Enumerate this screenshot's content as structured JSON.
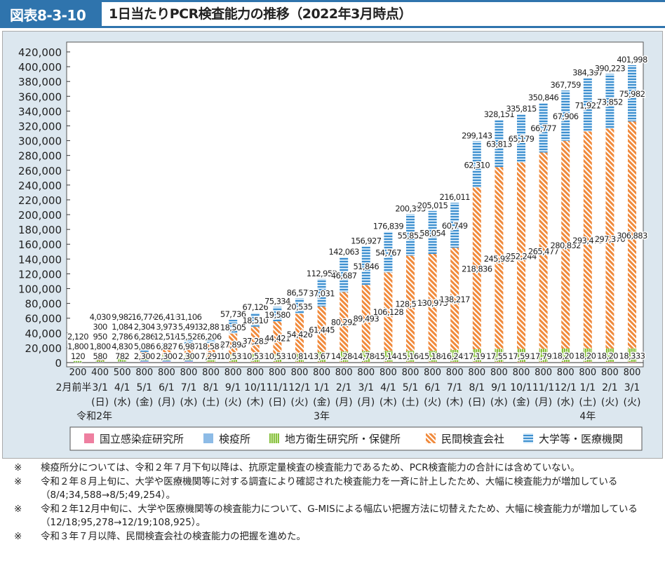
{
  "header": {
    "figure_no": "図表8-3-10",
    "title": "1日当たりPCR検査能力の推移（2022年3月時点）"
  },
  "chart_data": {
    "type": "bar",
    "stacked": true,
    "grid": false,
    "legend_position": "bottom",
    "ylim": [
      0,
      420000
    ],
    "yticks": [
      "0",
      "20,000",
      "40,000",
      "60,000",
      "80,000",
      "100,000",
      "120,000",
      "140,000",
      "160,000",
      "180,000",
      "200,000",
      "220,000",
      "240,000",
      "260,000",
      "280,000",
      "300,000",
      "320,000",
      "340,000",
      "360,000",
      "380,000",
      "400,000",
      "420,000"
    ],
    "categories": [
      "2月前半",
      "3/1",
      "4/1",
      "5/1",
      "6/1",
      "7/1",
      "8/1",
      "9/1",
      "10/1",
      "11/1",
      "12/1",
      "1/1",
      "2/1",
      "3/1",
      "4/1",
      "5/1",
      "6/1",
      "7/1",
      "8/1",
      "9/1",
      "10/1",
      "11/1",
      "12/1",
      "1/1",
      "2/1",
      "3/1"
    ],
    "weekdays": [
      "",
      "(日)",
      "(水)",
      "(金)",
      "(月)",
      "(水)",
      "(土)",
      "(火)",
      "(木)",
      "(日)",
      "(火)",
      "(金)",
      "(月)",
      "(月)",
      "(木)",
      "(土)",
      "(火)",
      "(木)",
      "(日)",
      "(水)",
      "(金)",
      "(月)",
      "(水)",
      "(土)",
      "(火)",
      "(火)"
    ],
    "years": [
      {
        "at": 1,
        "label": "令和2年"
      },
      {
        "at": 11,
        "label": "3年"
      },
      {
        "at": 23,
        "label": "4年"
      }
    ],
    "series": [
      {
        "name": "国立感染症研究所",
        "color": "#ee7fa0",
        "values": [
          200,
          400,
          500,
          800,
          800,
          800,
          800,
          800,
          800,
          800,
          800,
          800,
          800,
          800,
          800,
          800,
          800,
          800,
          800,
          800,
          800,
          800,
          800,
          800,
          800,
          800
        ]
      },
      {
        "name": "検疫所",
        "color": "#8dbbe6",
        "values": [
          120,
          580,
          782,
          2300,
          2300,
          2300,
          null,
          null,
          null,
          null,
          null,
          null,
          null,
          null,
          null,
          null,
          null,
          null,
          null,
          null,
          null,
          null,
          null,
          null,
          null,
          null
        ]
      },
      {
        "name": "地方衛生研究所・保健所",
        "color": "#8cc63f",
        "values": [
          1800,
          1800,
          4830,
          5086,
          6827,
          6987,
          7291,
          10533,
          10533,
          10533,
          10816,
          13677,
          14284,
          14788,
          15144,
          15168,
          15188,
          16245,
          17197,
          17557,
          17592,
          17792,
          18201,
          18201,
          18201,
          18333
        ]
      },
      {
        "name": "民間検査会社",
        "color": "#f08a3c",
        "values": [
          null,
          950,
          2786,
          6286,
          12518,
          15528,
          18584,
          27898,
          37283,
          44421,
          54426,
          61445,
          80292,
          89493,
          106128,
          128575,
          130973,
          138217,
          218836,
          245981,
          252244,
          265477,
          280852,
          293475,
          297370,
          306883
        ]
      },
      {
        "name": "大学等・医療機関",
        "color": "#4a9fd8",
        "values": [
          null,
          300,
          1084,
          2304,
          3973,
          5491,
          6206,
          18505,
          18510,
          19580,
          20535,
          37031,
          46687,
          51846,
          54767,
          55852,
          58054,
          60749,
          62310,
          63813,
          65179,
          66777,
          67906,
          71921,
          73852,
          75982
        ]
      }
    ],
    "totals": [
      2120,
      4030,
      9982,
      16776,
      26418,
      31106,
      32881,
      57736,
      67126,
      75334,
      86577,
      112953,
      142063,
      156927,
      176839,
      200395,
      205015,
      216011,
      299143,
      328151,
      335815,
      350846,
      367759,
      384397,
      390223,
      401998
    ]
  },
  "notes": [
    {
      "mark": "※",
      "text": "検疫所分については、令和２年７月下旬以降は、抗原定量検査の検査能力であるため、PCR検査能力の合計には含めていない。"
    },
    {
      "mark": "※",
      "text": "令和２年８月上旬に、大学や医療機関等に対する調査により確認された検査能力を一斉に計上したため、大幅に検査能力が増加している（8/4;34,588→8/5;49,254）。"
    },
    {
      "mark": "※",
      "text": "令和２年12月中旬に、大学や医療機関等の検査能力について、G-MISによる幅広い把握方法に切替えたため、大幅に検査能力が増加している（12/18;95,278→12/19;108,925）。"
    },
    {
      "mark": "※",
      "text": "令和３年７月以降、民間検査会社の検査能力の把握を進めた。"
    }
  ]
}
